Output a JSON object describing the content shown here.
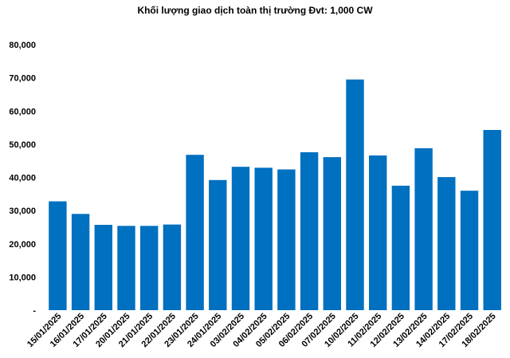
{
  "chart_data": {
    "type": "bar",
    "title": "Khối lượng giao dịch toàn thị trường Đvt: 1,000 CW",
    "xlabel": "",
    "ylabel": "",
    "ylim": [
      0,
      80000
    ],
    "y_ticks": [
      "-",
      "10,000",
      "20,000",
      "30,000",
      "40,000",
      "50,000",
      "60,000",
      "70,000",
      "80,000"
    ],
    "grid": false,
    "legend": "none",
    "bar_color": "#0070C0",
    "categories": [
      "15/01/2025",
      "16/01/2025",
      "17/01/2025",
      "20/01/2025",
      "21/01/2025",
      "22/01/2025",
      "23/01/2025",
      "24/01/2025",
      "03/02/2025",
      "04/02/2025",
      "05/02/2025",
      "06/02/2025",
      "07/02/2025",
      "10/02/2025",
      "11/02/2025",
      "12/02/2025",
      "13/02/2025",
      "14/02/2025",
      "17/02/2025",
      "18/02/2025"
    ],
    "values": [
      32800,
      29000,
      25700,
      25400,
      25400,
      25800,
      46800,
      39200,
      43200,
      42900,
      42400,
      47600,
      46100,
      69500,
      46600,
      37500,
      48800,
      40100,
      36000,
      54300
    ]
  }
}
